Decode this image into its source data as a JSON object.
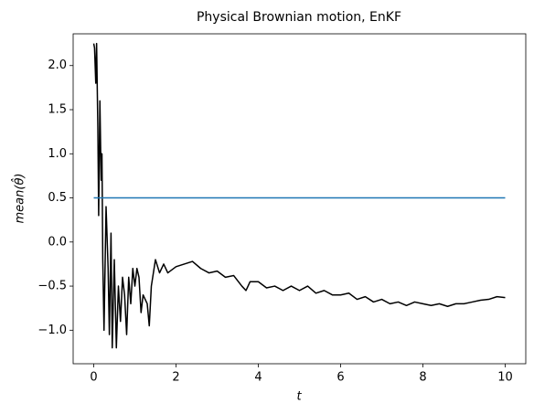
{
  "chart_data": {
    "type": "line",
    "title": "Physical Brownian motion, EnKF",
    "xlabel": "t",
    "ylabel": "mean(θ̂)",
    "xlim": [
      -0.5,
      10.5
    ],
    "ylim": [
      -1.38,
      2.36
    ],
    "xticks": [
      0,
      2,
      4,
      6,
      8,
      10
    ],
    "yticks": [
      {
        "value": -1.0,
        "label": "−1.0"
      },
      {
        "value": -0.5,
        "label": "−0.5"
      },
      {
        "value": 0.0,
        "label": "0.0"
      },
      {
        "value": 0.5,
        "label": "0.5"
      },
      {
        "value": 1.0,
        "label": "1.0"
      },
      {
        "value": 1.5,
        "label": "1.5"
      },
      {
        "value": 2.0,
        "label": "2.0"
      }
    ],
    "series": [
      {
        "color": "#000000",
        "x": [
          0,
          0.02,
          0.05,
          0.07,
          0.1,
          0.12,
          0.15,
          0.18,
          0.2,
          0.22,
          0.25,
          0.3,
          0.35,
          0.38,
          0.42,
          0.45,
          0.5,
          0.55,
          0.6,
          0.65,
          0.7,
          0.75,
          0.8,
          0.85,
          0.9,
          0.95,
          1.0,
          1.05,
          1.1,
          1.15,
          1.2,
          1.3,
          1.35,
          1.4,
          1.5,
          1.6,
          1.7,
          1.8,
          2.0,
          2.2,
          2.4,
          2.6,
          2.8,
          3.0,
          3.2,
          3.4,
          3.6,
          3.7,
          3.8,
          4.0,
          4.2,
          4.4,
          4.6,
          4.8,
          5.0,
          5.2,
          5.4,
          5.6,
          5.8,
          6.0,
          6.2,
          6.4,
          6.6,
          6.8,
          7.0,
          7.2,
          7.4,
          7.6,
          7.8,
          8.0,
          8.2,
          8.4,
          8.6,
          8.8,
          9.0,
          9.2,
          9.4,
          9.6,
          9.8,
          10.0
        ],
        "values": [
          2.25,
          2.2,
          1.8,
          2.25,
          1.3,
          0.3,
          1.6,
          0.7,
          1.0,
          -0.2,
          -1.0,
          0.4,
          -0.3,
          -1.05,
          0.1,
          -1.2,
          -0.2,
          -1.2,
          -0.5,
          -0.9,
          -0.4,
          -0.6,
          -1.05,
          -0.4,
          -0.7,
          -0.3,
          -0.5,
          -0.3,
          -0.4,
          -0.8,
          -0.6,
          -0.7,
          -0.95,
          -0.5,
          -0.2,
          -0.35,
          -0.25,
          -0.35,
          -0.28,
          -0.25,
          -0.22,
          -0.3,
          -0.35,
          -0.33,
          -0.4,
          -0.38,
          -0.5,
          -0.55,
          -0.45,
          -0.45,
          -0.52,
          -0.5,
          -0.55,
          -0.5,
          -0.55,
          -0.5,
          -0.58,
          -0.55,
          -0.6,
          -0.6,
          -0.58,
          -0.65,
          -0.62,
          -0.68,
          -0.65,
          -0.7,
          -0.68,
          -0.72,
          -0.68,
          -0.7,
          -0.72,
          -0.7,
          -0.73,
          -0.7,
          -0.7,
          -0.68,
          -0.66,
          -0.65,
          -0.62,
          -0.63
        ]
      },
      {
        "color": "#1f77b4",
        "x": [
          0,
          10
        ],
        "values": [
          0.5,
          0.5
        ]
      }
    ]
  }
}
